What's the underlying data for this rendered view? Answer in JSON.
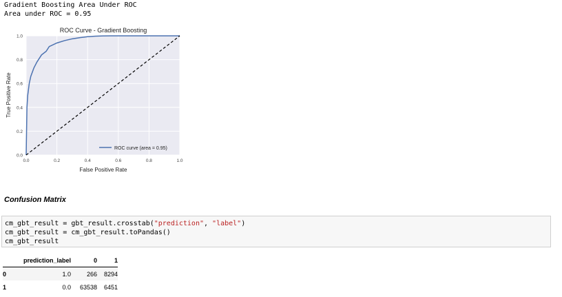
{
  "output": {
    "line1": "Gradient Boosting Area Under ROC",
    "line2": "Area under ROC = 0.95"
  },
  "chart_data": {
    "type": "line",
    "title": "ROC Curve - Gradient Boosting",
    "xlabel": "False Positive Rate",
    "ylabel": "True Positive Rate",
    "xlim": [
      0.0,
      1.0
    ],
    "ylim": [
      0.0,
      1.0
    ],
    "xticks": [
      "0.0",
      "0.2",
      "0.4",
      "0.6",
      "0.8",
      "1.0"
    ],
    "yticks": [
      "0.0",
      "0.2",
      "0.4",
      "0.6",
      "0.8",
      "1.0"
    ],
    "grid": true,
    "legend_position": "lower-right",
    "series": [
      {
        "name": "ROC curve (area = 0.95)",
        "color": "#4c72b0",
        "style": "solid",
        "x": [
          0.0,
          0.005,
          0.01,
          0.02,
          0.03,
          0.05,
          0.07,
          0.1,
          0.13,
          0.15,
          0.2,
          0.25,
          0.3,
          0.35,
          0.4,
          0.45,
          0.5,
          0.55,
          0.6,
          0.7,
          0.8,
          0.9,
          1.0
        ],
        "y": [
          0.0,
          0.4,
          0.5,
          0.6,
          0.66,
          0.73,
          0.78,
          0.84,
          0.87,
          0.91,
          0.94,
          0.96,
          0.975,
          0.985,
          0.993,
          0.997,
          0.999,
          1.0,
          1.0,
          1.0,
          1.0,
          1.0,
          1.0
        ]
      },
      {
        "color": "#000000",
        "style": "dashed",
        "x": [
          0.0,
          1.0
        ],
        "y": [
          0.0,
          1.0
        ]
      }
    ]
  },
  "section": {
    "heading": "Confusion Matrix"
  },
  "code": {
    "line1_pre": "cm_gbt_result = gbt_result.crosstab(",
    "line1_arg1": "\"prediction\"",
    "line1_sep": ", ",
    "line1_arg2": "\"label\"",
    "line1_post": ")",
    "line2": "cm_gbt_result = cm_gbt_result.toPandas()",
    "line3": "cm_gbt_result"
  },
  "table": {
    "headers": [
      "",
      "prediction_label",
      "0",
      "1"
    ],
    "rows": [
      [
        "0",
        "1.0",
        "266",
        "8294"
      ],
      [
        "1",
        "0.0",
        "63538",
        "6451"
      ]
    ]
  }
}
